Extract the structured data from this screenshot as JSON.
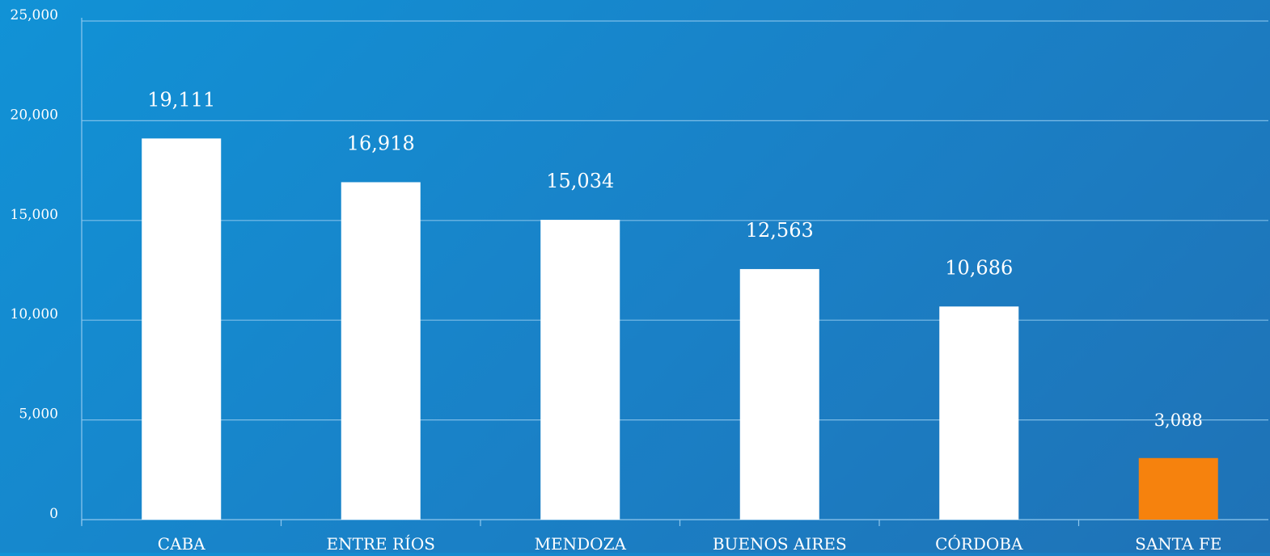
{
  "chart_data": {
    "type": "bar",
    "categories": [
      "CABA",
      "ENTRE RÍOS",
      "MENDOZA",
      "BUENOS AIRES",
      "CÓRDOBA",
      "SANTA FE"
    ],
    "values": [
      19111,
      16918,
      15034,
      12563,
      10686,
      3088
    ],
    "value_labels": [
      "19,111",
      "16,918",
      "15,034",
      "12,563",
      "10,686",
      "3,088"
    ],
    "bar_colors": [
      "#ffffff",
      "#ffffff",
      "#ffffff",
      "#ffffff",
      "#ffffff",
      "#f6820d"
    ],
    "ylim": [
      0,
      25000
    ],
    "yticks": [
      "0",
      "5,000",
      "10,000",
      "15,000",
      "20,000",
      "25,000"
    ],
    "grid": true,
    "title": "",
    "xlabel": "",
    "ylabel": ""
  },
  "colors": {
    "bar_default": "#ffffff",
    "bar_highlight": "#f6820d",
    "gridline": "#8fc8ee",
    "text": "#ffffff"
  }
}
